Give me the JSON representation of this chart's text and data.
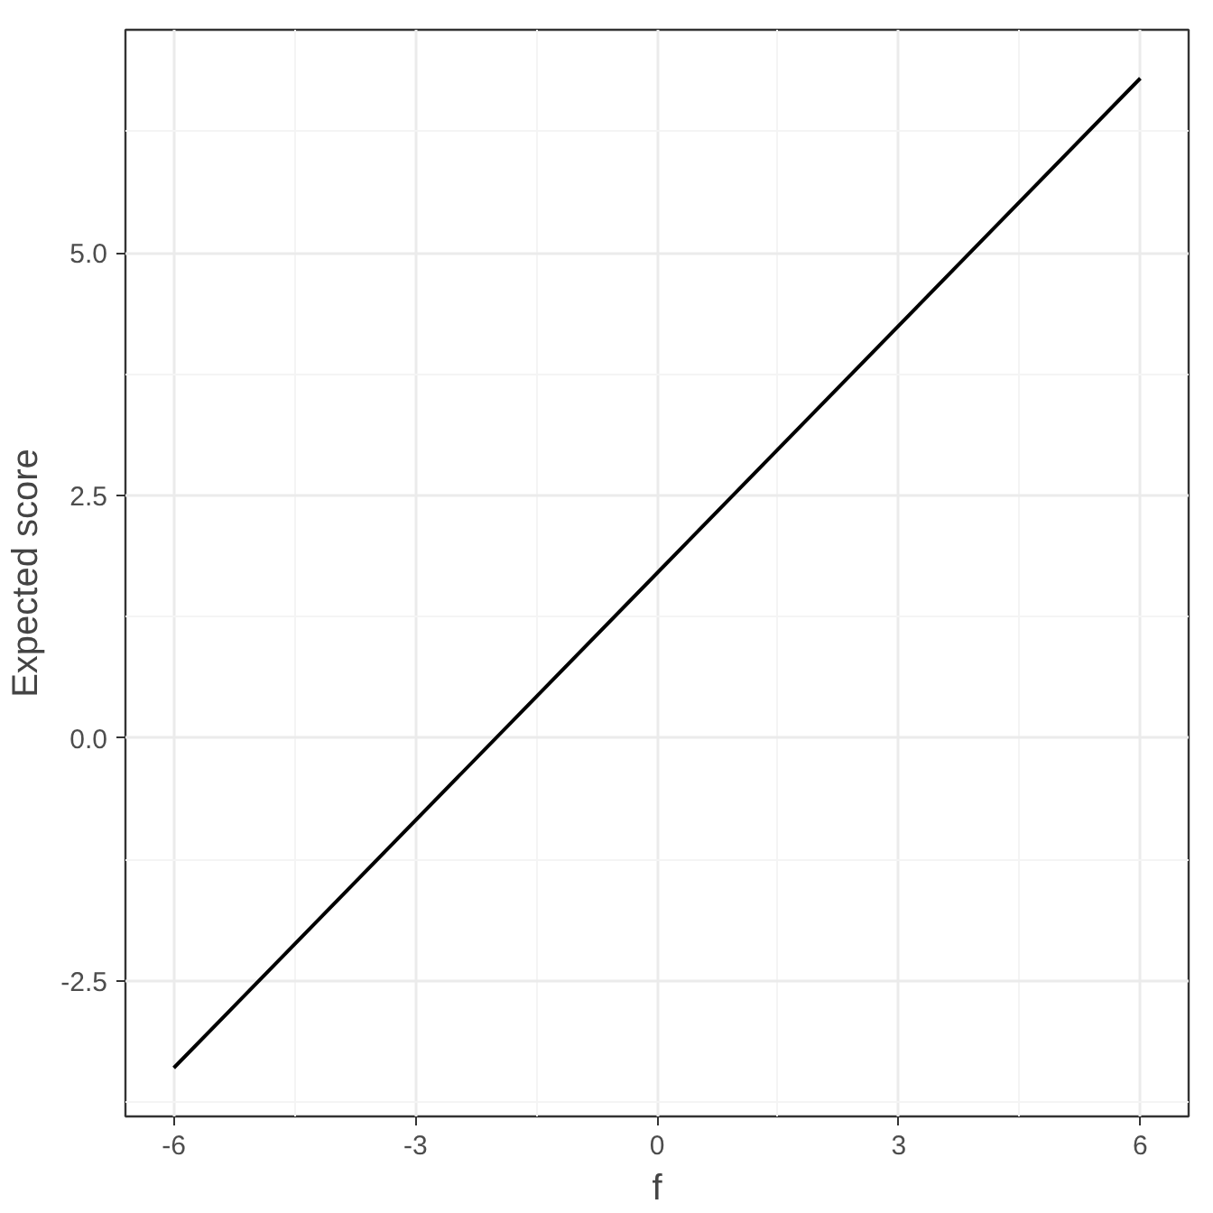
{
  "chart_data": {
    "type": "line",
    "xlabel": "f",
    "ylabel": "Expected score",
    "x": [
      -6,
      0,
      6
    ],
    "series": [
      {
        "color": "#000000",
        "values": [
          -3.4,
          1.7,
          6.8
        ]
      }
    ],
    "xlim": [
      -6.6,
      6.6
    ],
    "ylim": [
      -3.9,
      7.3
    ],
    "xticks": [
      -6,
      -3,
      0,
      3,
      6
    ],
    "yticks": [
      {
        "value": -2.5,
        "label": "-2.5"
      },
      {
        "value": 0,
        "label": "0.0"
      },
      {
        "value": 2.5,
        "label": "2.5"
      },
      {
        "value": 5,
        "label": "5.0"
      }
    ],
    "grid": true,
    "line_style": "solid",
    "marker": "none"
  }
}
